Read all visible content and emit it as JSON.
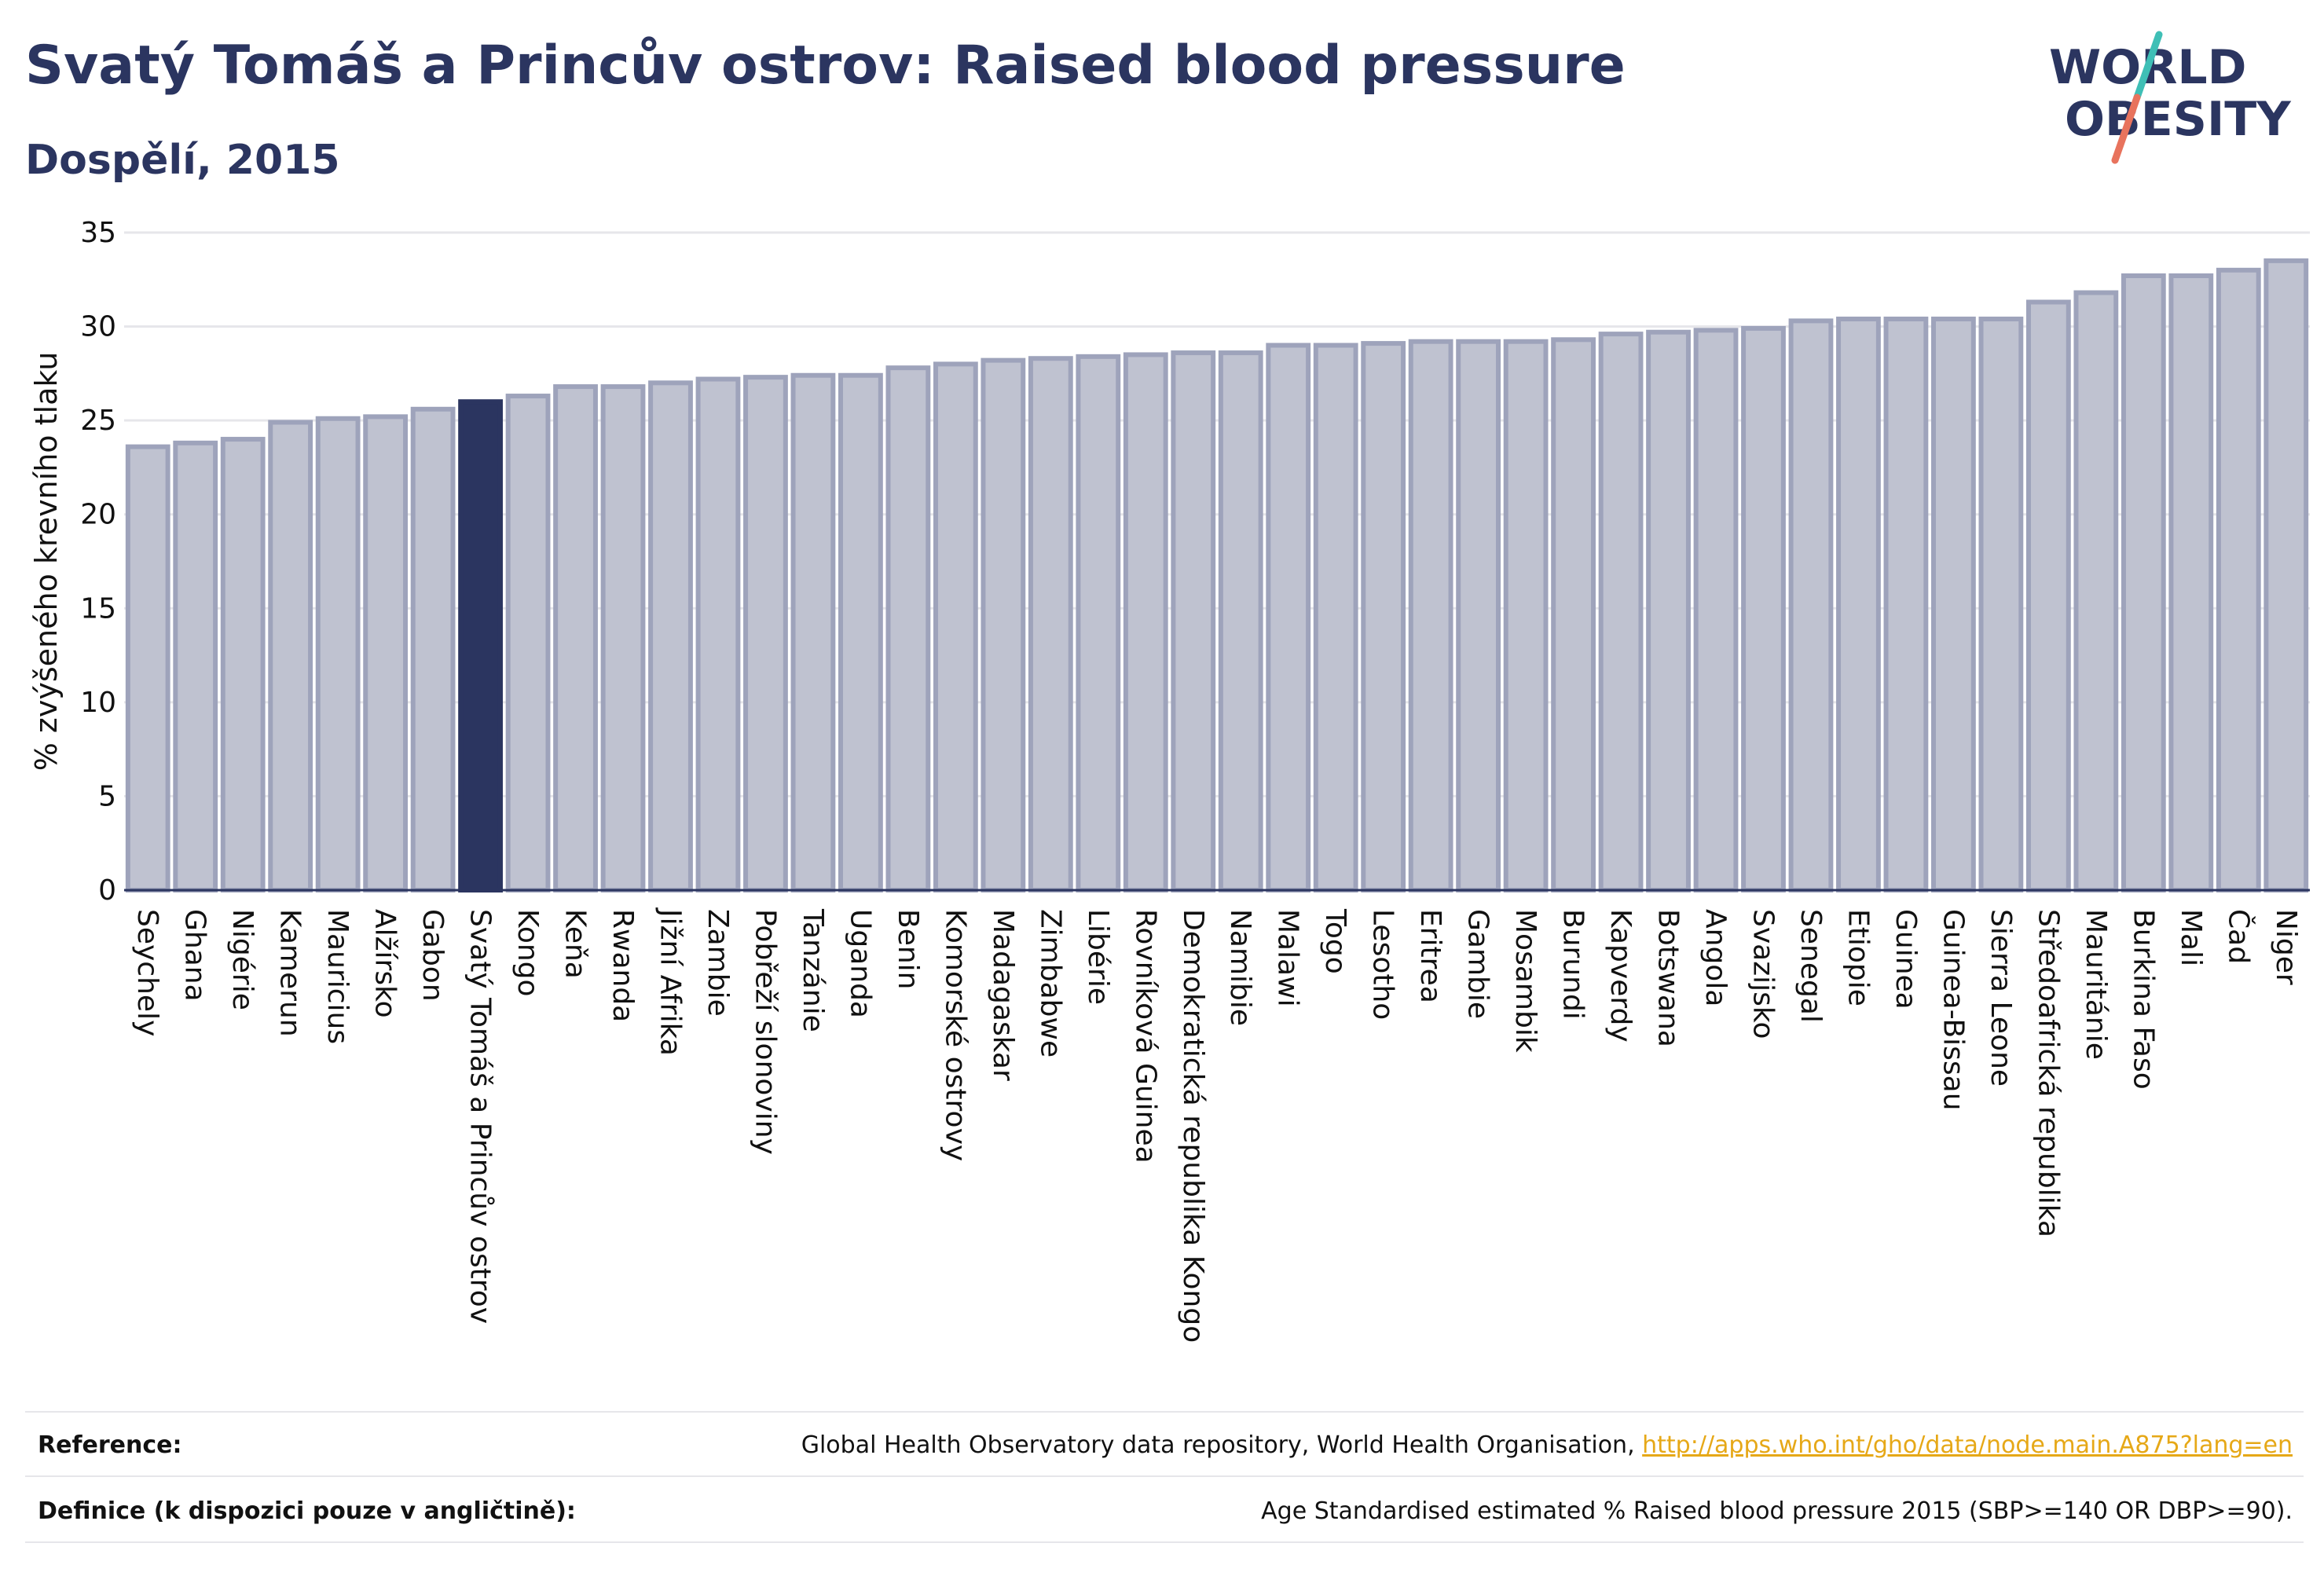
{
  "header": {
    "title": "Svatý Tomáš a Princův ostrov: Raised blood pressure",
    "subtitle": "Dospělí, 2015"
  },
  "logo": {
    "line1": "WORLD",
    "line2": "OBESITY",
    "colors": {
      "text": "#2b3560",
      "slash_top": "#3fbfb6",
      "slash_bottom": "#e8735d"
    }
  },
  "colors": {
    "bar_fill": "#bfc2d0",
    "bar_stroke": "#9ea3bb",
    "highlight": "#2b3560",
    "axis_text": "#111111",
    "grid": "#e6e6ea"
  },
  "chart_data": {
    "type": "bar",
    "title": "Svatý Tomáš a Princův ostrov: Raised blood pressure",
    "subtitle": "Dospělí, 2015",
    "ylabel": "% zvýšeného krevního tlaku",
    "xlabel": "",
    "ylim": [
      0,
      35
    ],
    "yticks": [
      0,
      5,
      10,
      15,
      20,
      25,
      30,
      35
    ],
    "grid": true,
    "highlight": "Svatý Tomáš a Princův ostrov",
    "categories": [
      "Seychely",
      "Ghana",
      "Nigérie",
      "Kamerun",
      "Mauricius",
      "Alžírsko",
      "Gabon",
      "Svatý Tomáš a Princův ostrov",
      "Kongo",
      "Keňa",
      "Rwanda",
      "Jižní Afrika",
      "Zambie",
      "Pobřeží slonoviny",
      "Tanzánie",
      "Uganda",
      "Benin",
      "Komorské ostrovy",
      "Madagaskar",
      "Zimbabwe",
      "Libérie",
      "Rovníková Guinea",
      "Demokratická republika Kongo",
      "Namibie",
      "Malawi",
      "Togo",
      "Lesotho",
      "Eritrea",
      "Gambie",
      "Mosambik",
      "Burundi",
      "Kapverdy",
      "Botswana",
      "Angola",
      "Svazijsko",
      "Senegal",
      "Etiopie",
      "Guinea",
      "Guinea-Bissau",
      "Sierra Leone",
      "Středoafrická republika",
      "Mauritánie",
      "Burkina Faso",
      "Mali",
      "Čad",
      "Niger"
    ],
    "values": [
      23.6,
      23.8,
      24.0,
      24.9,
      25.1,
      25.2,
      25.6,
      26.0,
      26.3,
      26.8,
      26.8,
      27.0,
      27.2,
      27.3,
      27.4,
      27.4,
      27.8,
      28.0,
      28.2,
      28.3,
      28.4,
      28.5,
      28.6,
      28.6,
      29.0,
      29.0,
      29.1,
      29.2,
      29.2,
      29.2,
      29.3,
      29.6,
      29.7,
      29.8,
      29.9,
      30.3,
      30.4,
      30.4,
      30.4,
      30.4,
      31.3,
      31.8,
      32.7,
      32.7,
      33.0,
      33.5
    ]
  },
  "footer": {
    "reference_label": "Reference:",
    "reference_text": "Global Health Observatory data repository, World Health Organisation, ",
    "reference_link": "http://apps.who.int/gho/data/node.main.A875?lang=en",
    "definition_label": "Definice (k dispozici pouze v angličtině):",
    "definition_text": "Age Standardised estimated % Raised blood pressure 2015 (SBP>=140 OR DBP>=90)."
  }
}
